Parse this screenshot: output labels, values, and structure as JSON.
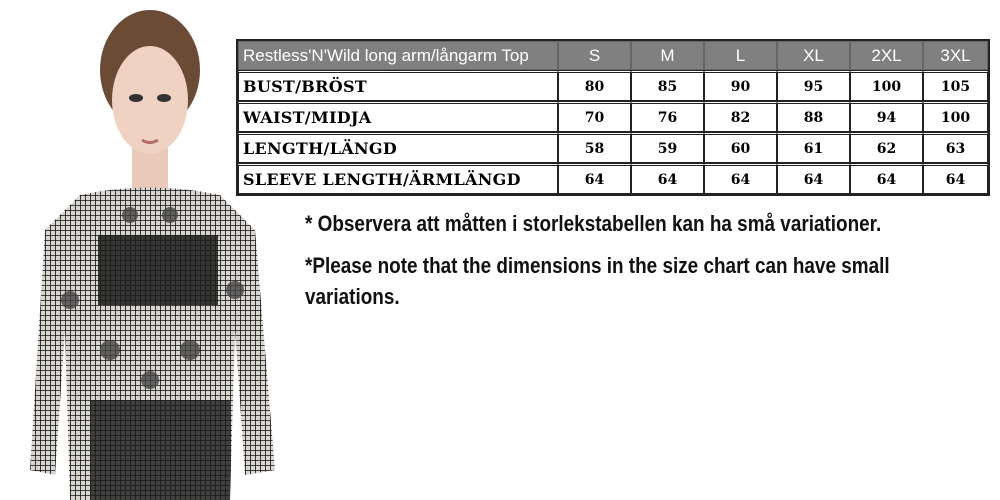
{
  "table": {
    "title": "Restless'N'Wild long arm/långarm Top",
    "sizes": [
      "S",
      "M",
      "L",
      "XL",
      "2XL",
      "3XL"
    ],
    "rows": [
      {
        "label": "BUST/BRÖST",
        "values": [
          "80",
          "85",
          "90",
          "95",
          "100",
          "105"
        ]
      },
      {
        "label": "WAIST/MIDJA",
        "values": [
          "70",
          "76",
          "82",
          "88",
          "94",
          "100"
        ]
      },
      {
        "label": "LENGTH/LÄNGD",
        "values": [
          "58",
          "59",
          "60",
          "61",
          "62",
          "63"
        ]
      },
      {
        "label": "SLEEVE LENGTH/ÄRMLÄNGD",
        "values": [
          "64",
          "64",
          "64",
          "64",
          "64",
          "64"
        ]
      }
    ]
  },
  "notes": {
    "swedish": "* Observera att måtten i storlekstabellen kan ha små variationer.",
    "english": "*Please note that the dimensions in the size chart can have small variations."
  },
  "colors": {
    "header_bg": "#808080",
    "header_text": "#ffffff"
  }
}
